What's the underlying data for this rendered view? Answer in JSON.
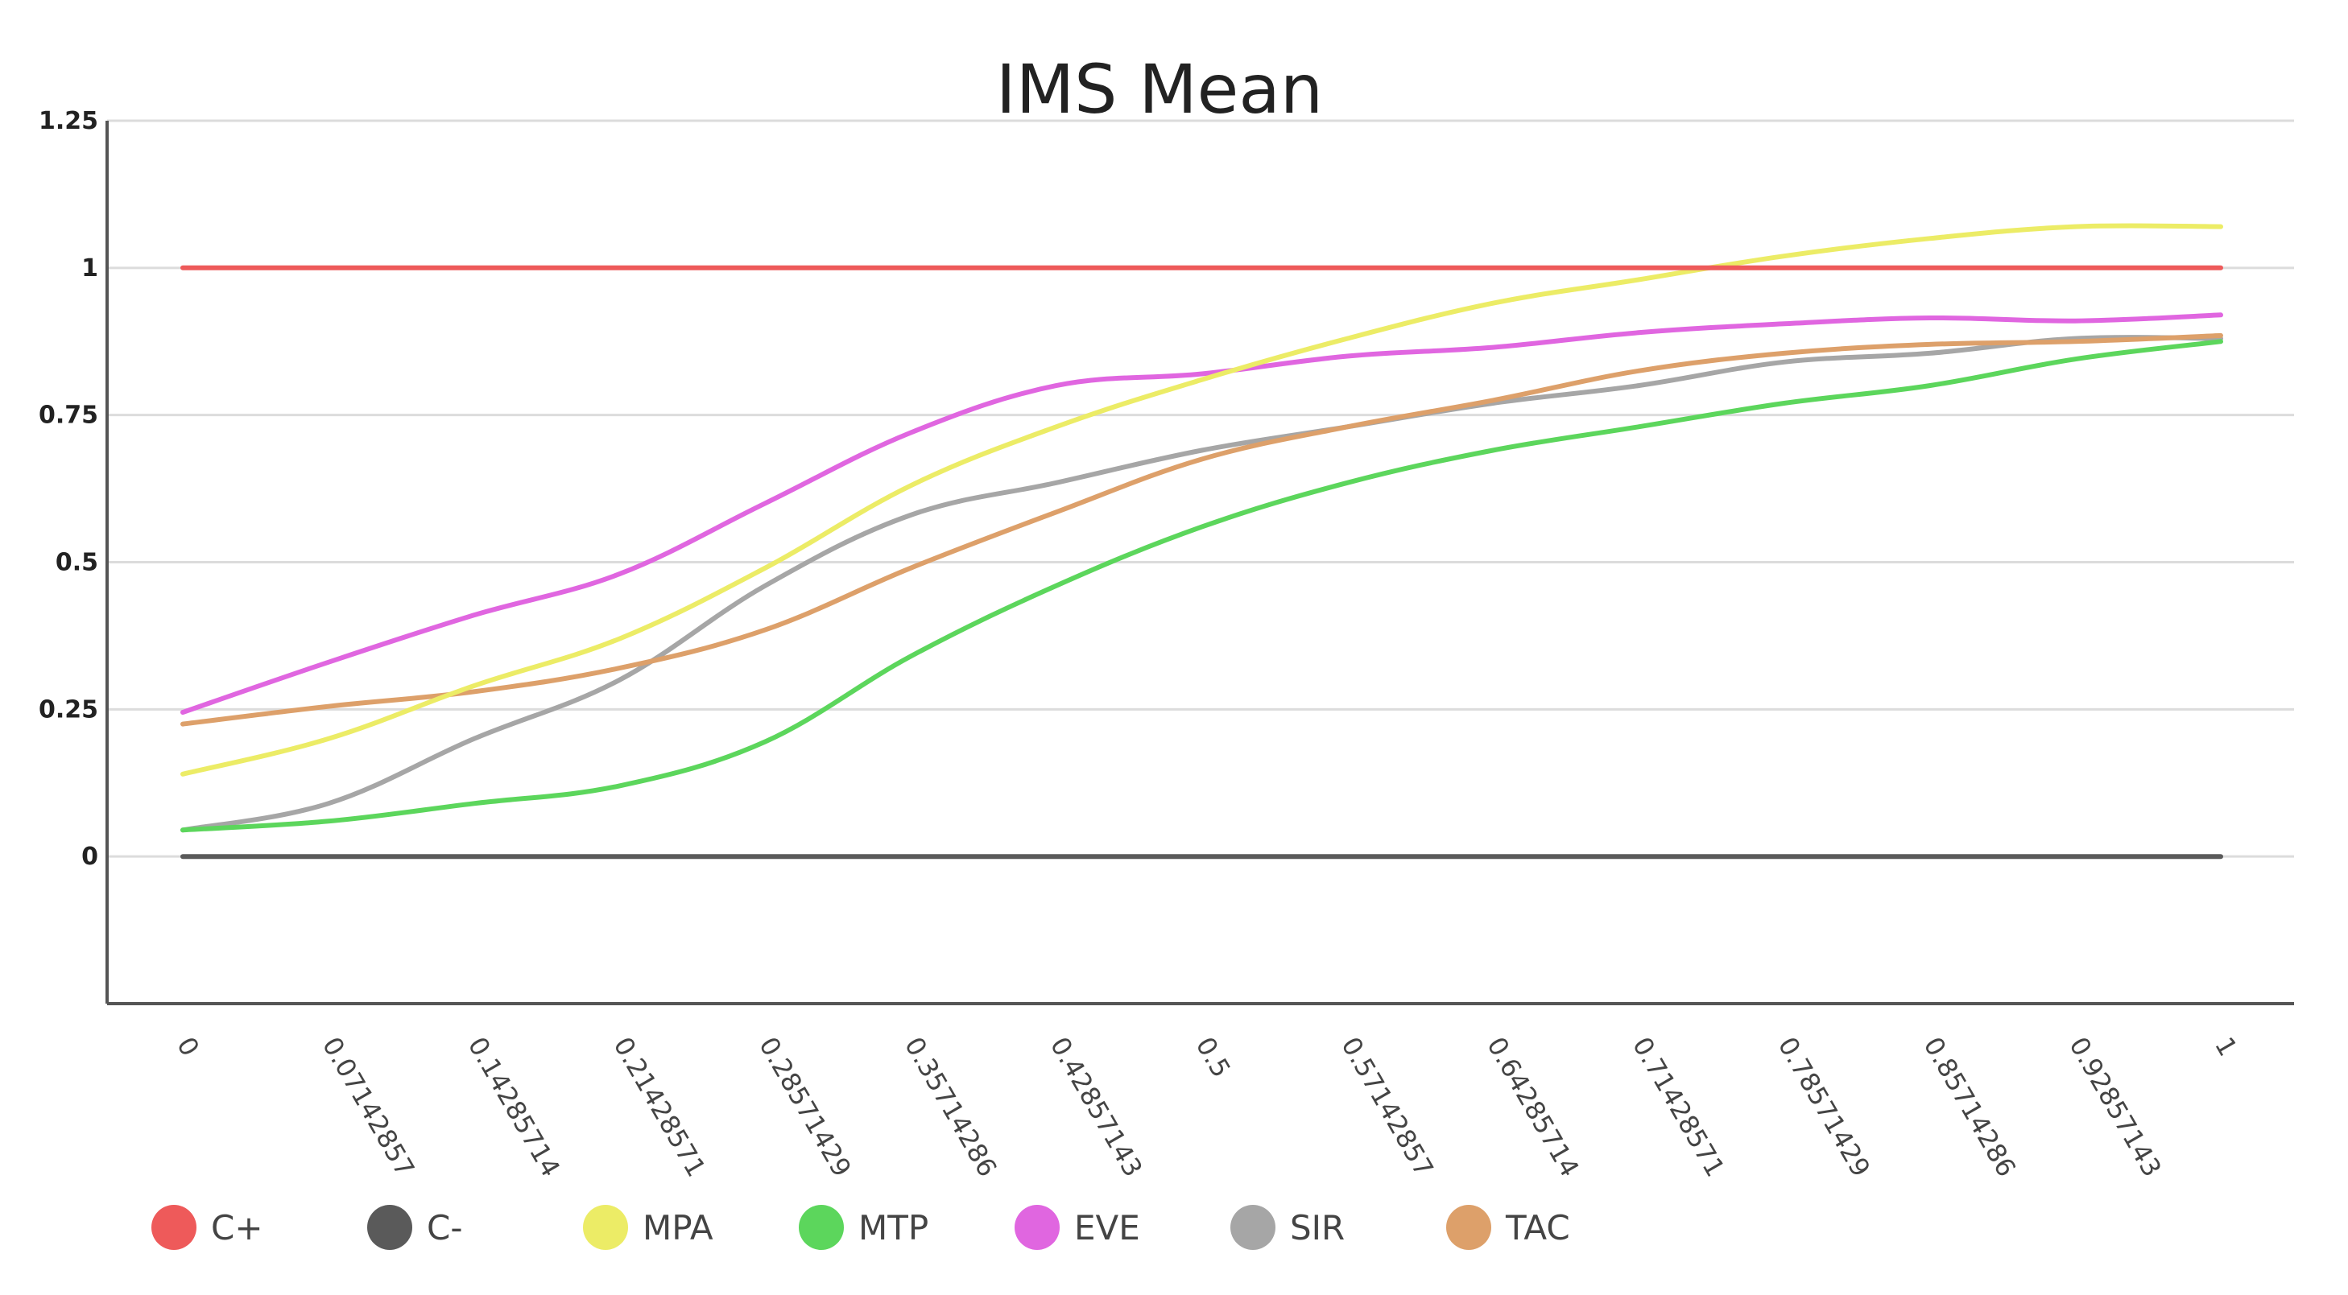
{
  "chart_data": {
    "type": "line",
    "title": "IMS Mean",
    "xlabel": "",
    "ylabel": "",
    "ylim": [
      -0.25,
      1.25
    ],
    "grid": true,
    "legend_position": "bottom-left",
    "x": [
      "0",
      "0.07142857",
      "0.14285714",
      "0.21428571",
      "0.28571429",
      "0.35714286",
      "0.42857143",
      "0.5",
      "0.57142857",
      "0.64285714",
      "0.71428571",
      "0.78571429",
      "0.85714286",
      "0.92857143",
      "1"
    ],
    "y_ticks": [
      {
        "value": 1.25,
        "label": "1.25"
      },
      {
        "value": 1,
        "label": "1"
      },
      {
        "value": 0.75,
        "label": "0.75"
      },
      {
        "value": 0.5,
        "label": "0.5"
      },
      {
        "value": 0.25,
        "label": "0.25"
      },
      {
        "value": 0,
        "label": "0"
      }
    ],
    "series": [
      {
        "name": "C+",
        "color": "#ee5a5a",
        "values": [
          1,
          1,
          1,
          1,
          1,
          1,
          1,
          1,
          1,
          1,
          1,
          1,
          1,
          1,
          1
        ]
      },
      {
        "name": "C-",
        "color": "#5a5a5a",
        "values": [
          0,
          0,
          0,
          0,
          0,
          0,
          0,
          0,
          0,
          0,
          0,
          0,
          0,
          0,
          0
        ]
      },
      {
        "name": "MPA",
        "color": "#ecec66",
        "values": [
          0.14,
          0.2,
          0.29,
          0.37,
          0.49,
          0.63,
          0.73,
          0.81,
          0.88,
          0.94,
          0.98,
          1.02,
          1.05,
          1.07,
          1.07
        ]
      },
      {
        "name": "MTP",
        "color": "#5cd65c",
        "values": [
          0.045,
          0.06,
          0.09,
          0.12,
          0.195,
          0.34,
          0.46,
          0.56,
          0.635,
          0.69,
          0.73,
          0.77,
          0.8,
          0.845,
          0.875
        ]
      },
      {
        "name": "EVE",
        "color": "#e066e0",
        "values": [
          0.245,
          0.33,
          0.41,
          0.48,
          0.6,
          0.72,
          0.8,
          0.82,
          0.85,
          0.865,
          0.89,
          0.905,
          0.915,
          0.91,
          0.92
        ]
      },
      {
        "name": "SIR",
        "color": "#a6a6a6",
        "values": [
          0.045,
          0.09,
          0.2,
          0.3,
          0.46,
          0.58,
          0.635,
          0.69,
          0.73,
          0.77,
          0.8,
          0.84,
          0.855,
          0.88,
          0.88
        ]
      },
      {
        "name": "TAC",
        "color": "#dda06a",
        "values": [
          0.225,
          0.255,
          0.28,
          0.32,
          0.385,
          0.49,
          0.585,
          0.675,
          0.73,
          0.775,
          0.825,
          0.855,
          0.87,
          0.875,
          0.885
        ]
      }
    ]
  }
}
